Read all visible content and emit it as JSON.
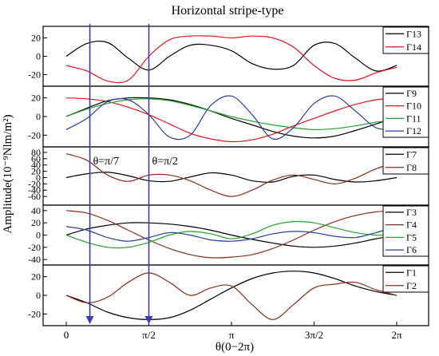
{
  "chart_data": {
    "type": "line",
    "title": "Horizontal stripe-type",
    "xlabel": "θ(0−2π)",
    "ylabel": "Amplitude(10⁻⁹Nlm/m²)",
    "xlim": [
      0,
      6.2832
    ],
    "x_ticks": [
      {
        "value": 0,
        "label": "0"
      },
      {
        "value": 1.5708,
        "label": "π/2"
      },
      {
        "value": 3.1416,
        "label": "π"
      },
      {
        "value": 4.7124,
        "label": "3π/2"
      },
      {
        "value": 6.2832,
        "label": "2π"
      }
    ],
    "grid": false,
    "legend_placement": "right",
    "annotations": [
      {
        "text": "θ=π/7",
        "x": 0.4488,
        "panel": 2
      },
      {
        "text": "θ=π/2",
        "x": 1.5708,
        "panel": 2
      }
    ],
    "markers": [
      {
        "x": 0.4488,
        "color": "#3b3bb8"
      },
      {
        "x": 1.5708,
        "color": "#3b3bb8"
      }
    ],
    "panels": [
      {
        "ylim": [
          -30,
          30
        ],
        "yticks": [
          {
            "value": 20,
            "label": "20"
          },
          {
            "value": 0,
            "label": "0"
          },
          {
            "value": -20,
            "label": "-20"
          }
        ],
        "series": [
          {
            "name": "Γ13",
            "color": "#000000",
            "x": [
              0,
              0.3927,
              0.7854,
              1.1781,
              1.5708,
              1.9635,
              2.3562,
              2.7489,
              3.1416,
              3.5343,
              3.927,
              4.3197,
              4.7124,
              5.1051,
              5.4978,
              5.8905,
              6.2832
            ],
            "y": [
              0,
              14,
              15,
              -2,
              -15,
              0,
              12,
              12,
              6,
              -8,
              -14,
              -10,
              12,
              14,
              -2,
              -16,
              -10
            ]
          },
          {
            "name": "Γ14",
            "color": "#e8131b",
            "x": [
              0,
              0.3927,
              0.7854,
              1.1781,
              1.5708,
              1.9635,
              2.3562,
              2.7489,
              3.1416,
              3.5343,
              3.927,
              4.3197,
              4.7124,
              5.1051,
              5.4978,
              5.8905,
              6.2832
            ],
            "y": [
              -10,
              -16,
              -27,
              -26,
              0,
              18,
              22,
              22,
              20,
              22,
              20,
              10,
              -10,
              -24,
              -26,
              -18,
              -12
            ]
          }
        ]
      },
      {
        "ylim": [
          -30,
          30
        ],
        "yticks": [
          {
            "value": 20,
            "label": "20"
          },
          {
            "value": 0,
            "label": "0"
          },
          {
            "value": -20,
            "label": "-20"
          }
        ],
        "series": [
          {
            "name": "Γ9",
            "color": "#000000",
            "x": [
              0,
              0.3927,
              0.7854,
              1.1781,
              1.5708,
              1.9635,
              2.3562,
              2.7489,
              3.1416,
              3.5343,
              3.927,
              4.3197,
              4.7124,
              5.1051,
              5.4978,
              5.8905,
              6.2832
            ],
            "y": [
              0,
              9,
              17,
              20,
              20,
              18,
              13,
              6,
              -2,
              -9,
              -16,
              -21,
              -23,
              -21,
              -15,
              -8,
              0
            ]
          },
          {
            "name": "Γ10",
            "color": "#e8131b",
            "x": [
              0,
              0.3927,
              0.7854,
              1.1781,
              1.5708,
              1.9635,
              2.3562,
              2.7489,
              3.1416,
              3.5343,
              3.927,
              4.3197,
              4.7124,
              5.1051,
              5.4978,
              5.8905,
              6.2832
            ],
            "y": [
              20,
              19,
              16,
              10,
              2,
              -8,
              -18,
              -24,
              -27,
              -25,
              -19,
              -10,
              -2,
              6,
              13,
              18,
              20
            ]
          },
          {
            "name": "Γ11",
            "color": "#22a32b",
            "x": [
              0,
              0.3927,
              0.7854,
              1.1781,
              1.5708,
              1.9635,
              2.3562,
              2.7489,
              3.1416,
              3.5343,
              3.927,
              4.3197,
              4.7124,
              5.1051,
              5.4978,
              5.8905,
              6.2832
            ],
            "y": [
              0,
              8,
              14,
              18,
              19,
              17,
              12,
              6,
              0,
              -5,
              -9,
              -12,
              -14,
              -13,
              -10,
              -6,
              -4
            ]
          },
          {
            "name": "Γ12",
            "color": "#2a3fa3",
            "x": [
              0,
              0.3927,
              0.7854,
              1.1781,
              1.5708,
              1.9635,
              2.3562,
              2.7489,
              3.1416,
              3.5343,
              3.927,
              4.3197,
              4.7124,
              5.1051,
              5.4978,
              5.8905,
              6.2832
            ],
            "y": [
              -14,
              -2,
              16,
              18,
              2,
              -22,
              -20,
              12,
              22,
              2,
              -24,
              -12,
              14,
              22,
              6,
              -12,
              -14
            ]
          }
        ]
      },
      {
        "ylim": [
          -80,
          90
        ],
        "yticks": [
          {
            "value": 80,
            "label": "80"
          },
          {
            "value": 60,
            "label": "60"
          },
          {
            "value": 40,
            "label": "40"
          },
          {
            "value": 20,
            "label": "20"
          },
          {
            "value": 0,
            "label": "0"
          },
          {
            "value": -20,
            "label": "-20"
          },
          {
            "value": -40,
            "label": "-40"
          },
          {
            "value": -60,
            "label": "-60"
          }
        ],
        "series": [
          {
            "name": "Γ7",
            "color": "#000000",
            "x": [
              0,
              0.3927,
              0.7854,
              1.1781,
              1.5708,
              1.9635,
              2.3562,
              2.7489,
              3.1416,
              3.5343,
              3.927,
              4.3197,
              4.7124,
              5.1051,
              5.4978,
              5.8905,
              6.2832
            ],
            "y": [
              0,
              12,
              17,
              6,
              -10,
              -12,
              2,
              15,
              8,
              -10,
              -14,
              4,
              8,
              -6,
              -14,
              -10,
              0
            ]
          },
          {
            "name": "Γ8",
            "color": "#8b2d1c",
            "x": [
              0,
              0.3927,
              0.7854,
              1.1781,
              1.5708,
              1.9635,
              2.3562,
              2.7489,
              3.1416,
              3.5343,
              3.927,
              4.3197,
              4.7124,
              5.1051,
              5.4978,
              5.8905,
              6.2832
            ],
            "y": [
              76,
              55,
              8,
              -12,
              8,
              8,
              -10,
              -40,
              -60,
              -40,
              -8,
              8,
              -6,
              -20,
              -2,
              28,
              48
            ]
          }
        ]
      },
      {
        "ylim": [
          -45,
          45
        ],
        "yticks": [
          {
            "value": 40,
            "label": "40"
          },
          {
            "value": 20,
            "label": "20"
          },
          {
            "value": 0,
            "label": "0"
          },
          {
            "value": -20,
            "label": "-20"
          },
          {
            "value": -40,
            "label": "-40"
          }
        ],
        "series": [
          {
            "name": "Γ3",
            "color": "#000000",
            "x": [
              0,
              0.3927,
              0.7854,
              1.1781,
              1.5708,
              1.9635,
              2.3562,
              2.7489,
              3.1416,
              3.5343,
              3.927,
              4.3197,
              4.7124,
              5.1051,
              5.4978,
              5.8905,
              6.2832
            ],
            "y": [
              0,
              10,
              16,
              20,
              20,
              18,
              14,
              8,
              0,
              -7,
              -13,
              -18,
              -20,
              -18,
              -13,
              -6,
              0
            ]
          },
          {
            "name": "Γ4",
            "color": "#8b2d1c",
            "x": [
              0,
              0.3927,
              0.7854,
              1.1781,
              1.5708,
              1.9635,
              2.3562,
              2.7489,
              3.1416,
              3.5343,
              3.927,
              4.3197,
              4.7124,
              5.1051,
              5.4978,
              5.8905,
              6.2832
            ],
            "y": [
              40,
              36,
              24,
              8,
              -8,
              -22,
              -32,
              -37,
              -36,
              -32,
              -22,
              -8,
              8,
              22,
              32,
              38,
              40
            ]
          },
          {
            "name": "Γ5",
            "color": "#22a32b",
            "x": [
              0,
              0.3927,
              0.7854,
              1.1781,
              1.5708,
              1.9635,
              2.3562,
              2.7489,
              3.1416,
              3.5343,
              3.927,
              4.3197,
              4.7124,
              5.1051,
              5.4978,
              5.8905,
              6.2832
            ],
            "y": [
              0,
              -12,
              -20,
              -20,
              -12,
              0,
              6,
              2,
              -6,
              2,
              16,
              22,
              20,
              12,
              4,
              0,
              0
            ]
          },
          {
            "name": "Γ6",
            "color": "#2a3fa3",
            "x": [
              0,
              0.3927,
              0.7854,
              1.1781,
              1.5708,
              1.9635,
              2.3562,
              2.7489,
              3.1416,
              3.5343,
              3.927,
              4.3197,
              4.7124,
              5.1051,
              5.4978,
              5.8905,
              6.2832
            ],
            "y": [
              14,
              8,
              -4,
              -10,
              -4,
              4,
              0,
              -8,
              -10,
              -6,
              2,
              6,
              4,
              -2,
              -4,
              4,
              14
            ]
          }
        ]
      },
      {
        "ylim": [
          -30,
          30
        ],
        "yticks": [
          {
            "value": 20,
            "label": "20"
          },
          {
            "value": 0,
            "label": "0"
          },
          {
            "value": -20,
            "label": "-20"
          }
        ],
        "series": [
          {
            "name": "Γ1",
            "color": "#000000",
            "x": [
              0,
              0.3927,
              0.7854,
              1.1781,
              1.5708,
              1.9635,
              2.3562,
              2.7489,
              3.1416,
              3.5343,
              3.927,
              4.3197,
              4.7124,
              5.1051,
              5.4978,
              5.8905,
              6.2832
            ],
            "y": [
              0,
              -8,
              -18,
              -24,
              -26,
              -24,
              -16,
              -4,
              8,
              18,
              24,
              26,
              24,
              18,
              10,
              4,
              0
            ]
          },
          {
            "name": "Γ2",
            "color": "#8b2d1c",
            "x": [
              0,
              0.3927,
              0.7854,
              1.1781,
              1.5708,
              1.9635,
              2.3562,
              2.7489,
              3.1416,
              3.5343,
              3.927,
              4.3197,
              4.7124,
              5.1051,
              5.4978,
              5.8905,
              6.2832
            ],
            "y": [
              0,
              -8,
              -2,
              14,
              24,
              14,
              0,
              8,
              10,
              -10,
              -26,
              -10,
              8,
              12,
              14,
              6,
              0
            ]
          }
        ]
      }
    ]
  }
}
